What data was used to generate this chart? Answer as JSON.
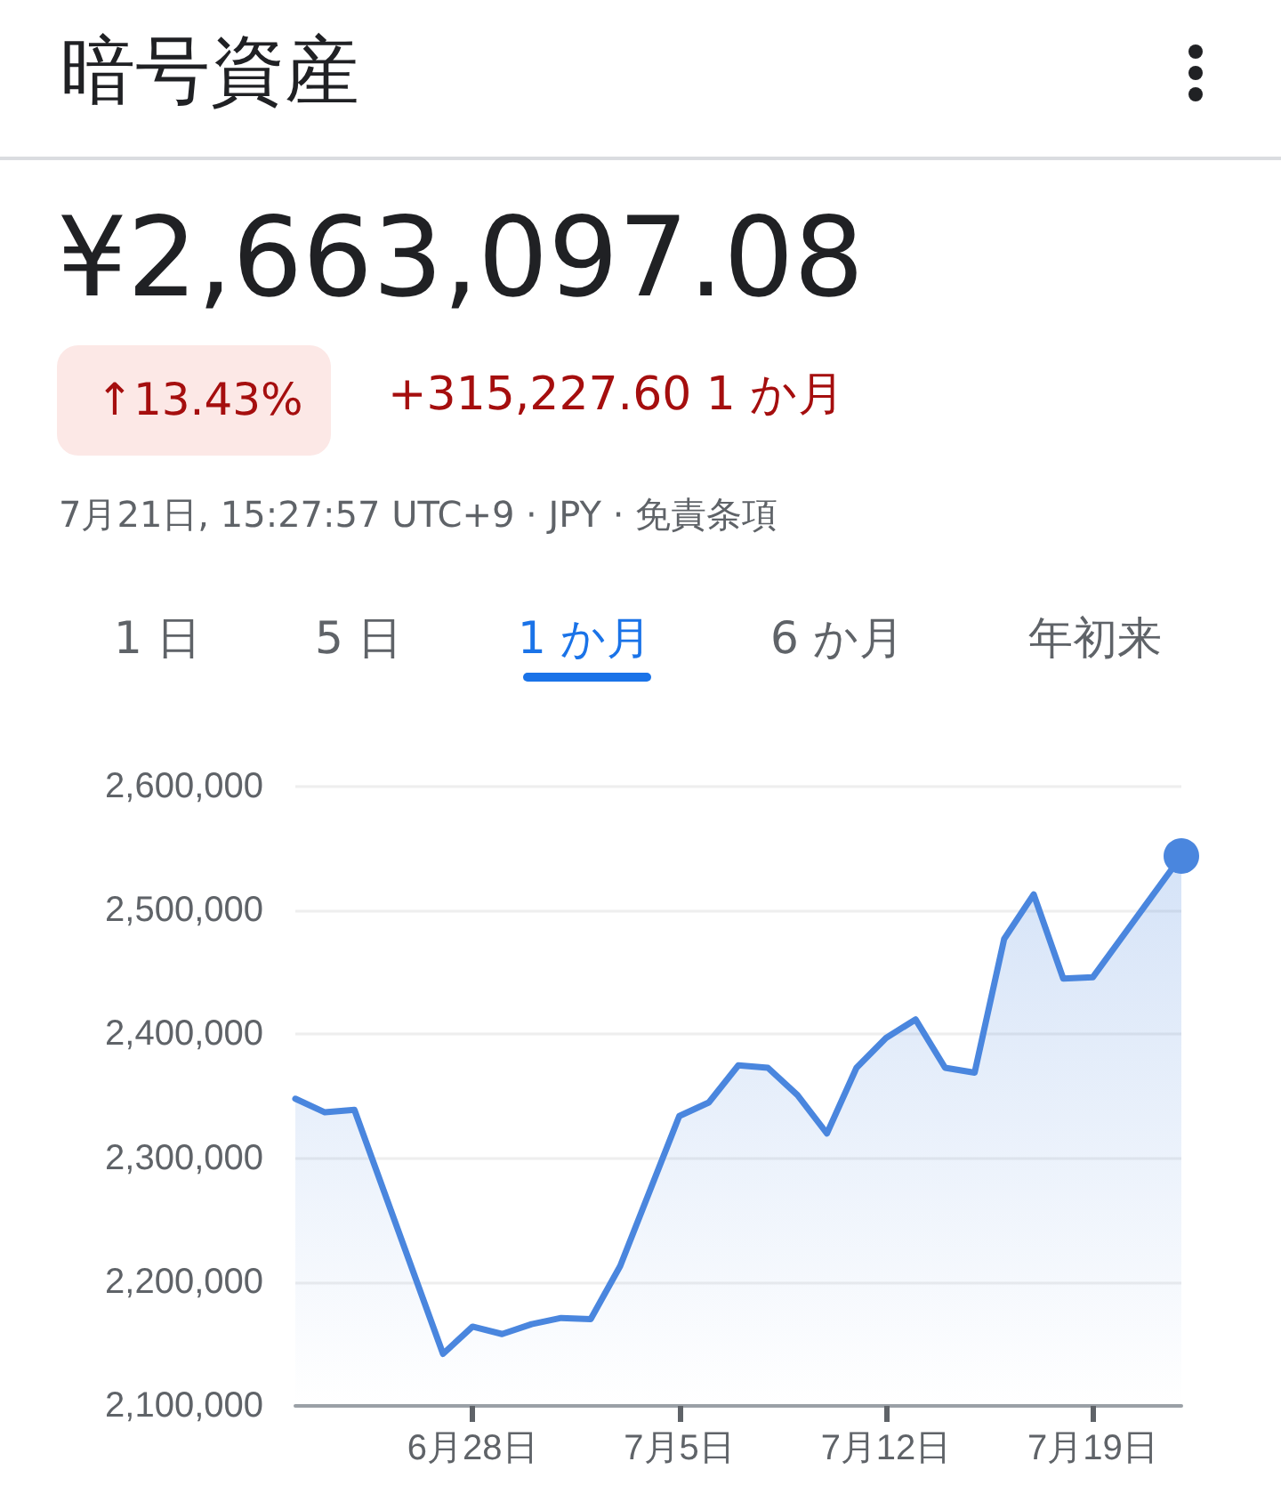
{
  "chart_data": {
    "type": "area",
    "title": "暗号資産",
    "subtitle": "¥2,663,097.08",
    "annotations": [
      "↑13.43%",
      "+315,227.60 1 か月",
      "7月21日, 15:27:57 UTC+9 · JPY · 免責条項",
      "1 日",
      "5 日",
      "1 か月",
      "6 か月",
      "年初来"
    ],
    "x": [
      "--06-22",
      "--06-23",
      "--06-24",
      "--06-27",
      "--06-28",
      "--06-29",
      "--06-30",
      "--07-01",
      "--07-02",
      "--07-03",
      "--07-05",
      "--07-06",
      "--07-07",
      "--07-08",
      "--07-09",
      "--07-10",
      "--07-11",
      "--07-12",
      "--07-13",
      "--07-14",
      "--07-15",
      "--07-16",
      "--07-17",
      "--07-18",
      "--07-19",
      "--07-22"
    ],
    "series": [
      {
        "color": "#4a86de",
        "values": [
          2348000,
          2337000,
          2339000,
          2142000,
          2164000,
          2158000,
          2166000,
          2171000,
          2170000,
          2213000,
          2334000,
          2345000,
          2375000,
          2373000,
          2351000,
          2320000,
          2373000,
          2397000,
          2412000,
          2373000,
          2369000,
          2477000,
          2513000,
          2445000,
          2446000,
          2544000
        ]
      }
    ],
    "xlim": [
      "--06-22",
      "--07-22"
    ],
    "xticks": [
      {
        "value": "--06-28",
        "label": "6月28日"
      },
      {
        "value": "--07-05",
        "label": "7月5日"
      },
      {
        "value": "--07-12",
        "label": "7月12日"
      },
      {
        "value": "--07-19",
        "label": "7月19日"
      }
    ],
    "ylim": [
      2100000,
      2600000
    ],
    "yticks": [
      {
        "value": 2100000,
        "label": "2,100,000"
      },
      {
        "value": 2200000,
        "label": "2,200,000"
      },
      {
        "value": 2300000,
        "label": "2,300,000"
      },
      {
        "value": 2400000,
        "label": "2,400,000"
      },
      {
        "value": 2500000,
        "label": "2,500,000"
      },
      {
        "value": 2600000,
        "label": "2,600,000"
      }
    ],
    "grid": "y",
    "marker": "none",
    "line_style": "solid"
  }
}
